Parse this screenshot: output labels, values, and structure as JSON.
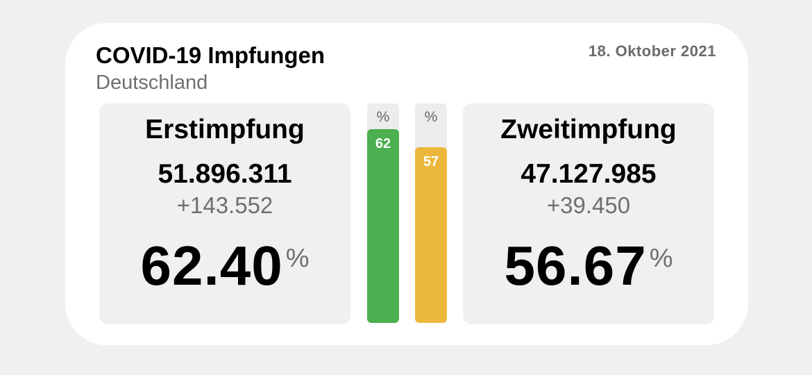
{
  "header": {
    "title": "COVID-19 Impfungen",
    "subtitle": "Deutschland",
    "date": "18. Oktober 2021"
  },
  "first_dose": {
    "heading": "Erstimpfung",
    "total": "51.896.311",
    "delta": "+143.552",
    "percent": "62.40",
    "percent_unit": "%"
  },
  "second_dose": {
    "heading": "Zweitimpfung",
    "total": "47.127.985",
    "delta": "+39.450",
    "percent": "56.67",
    "percent_unit": "%"
  },
  "bars": [
    {
      "unit": "%",
      "label": "62",
      "value": 62.4,
      "color": "#4caf50"
    },
    {
      "unit": "%",
      "label": "57",
      "value": 56.67,
      "color": "#ebb83b"
    }
  ]
}
